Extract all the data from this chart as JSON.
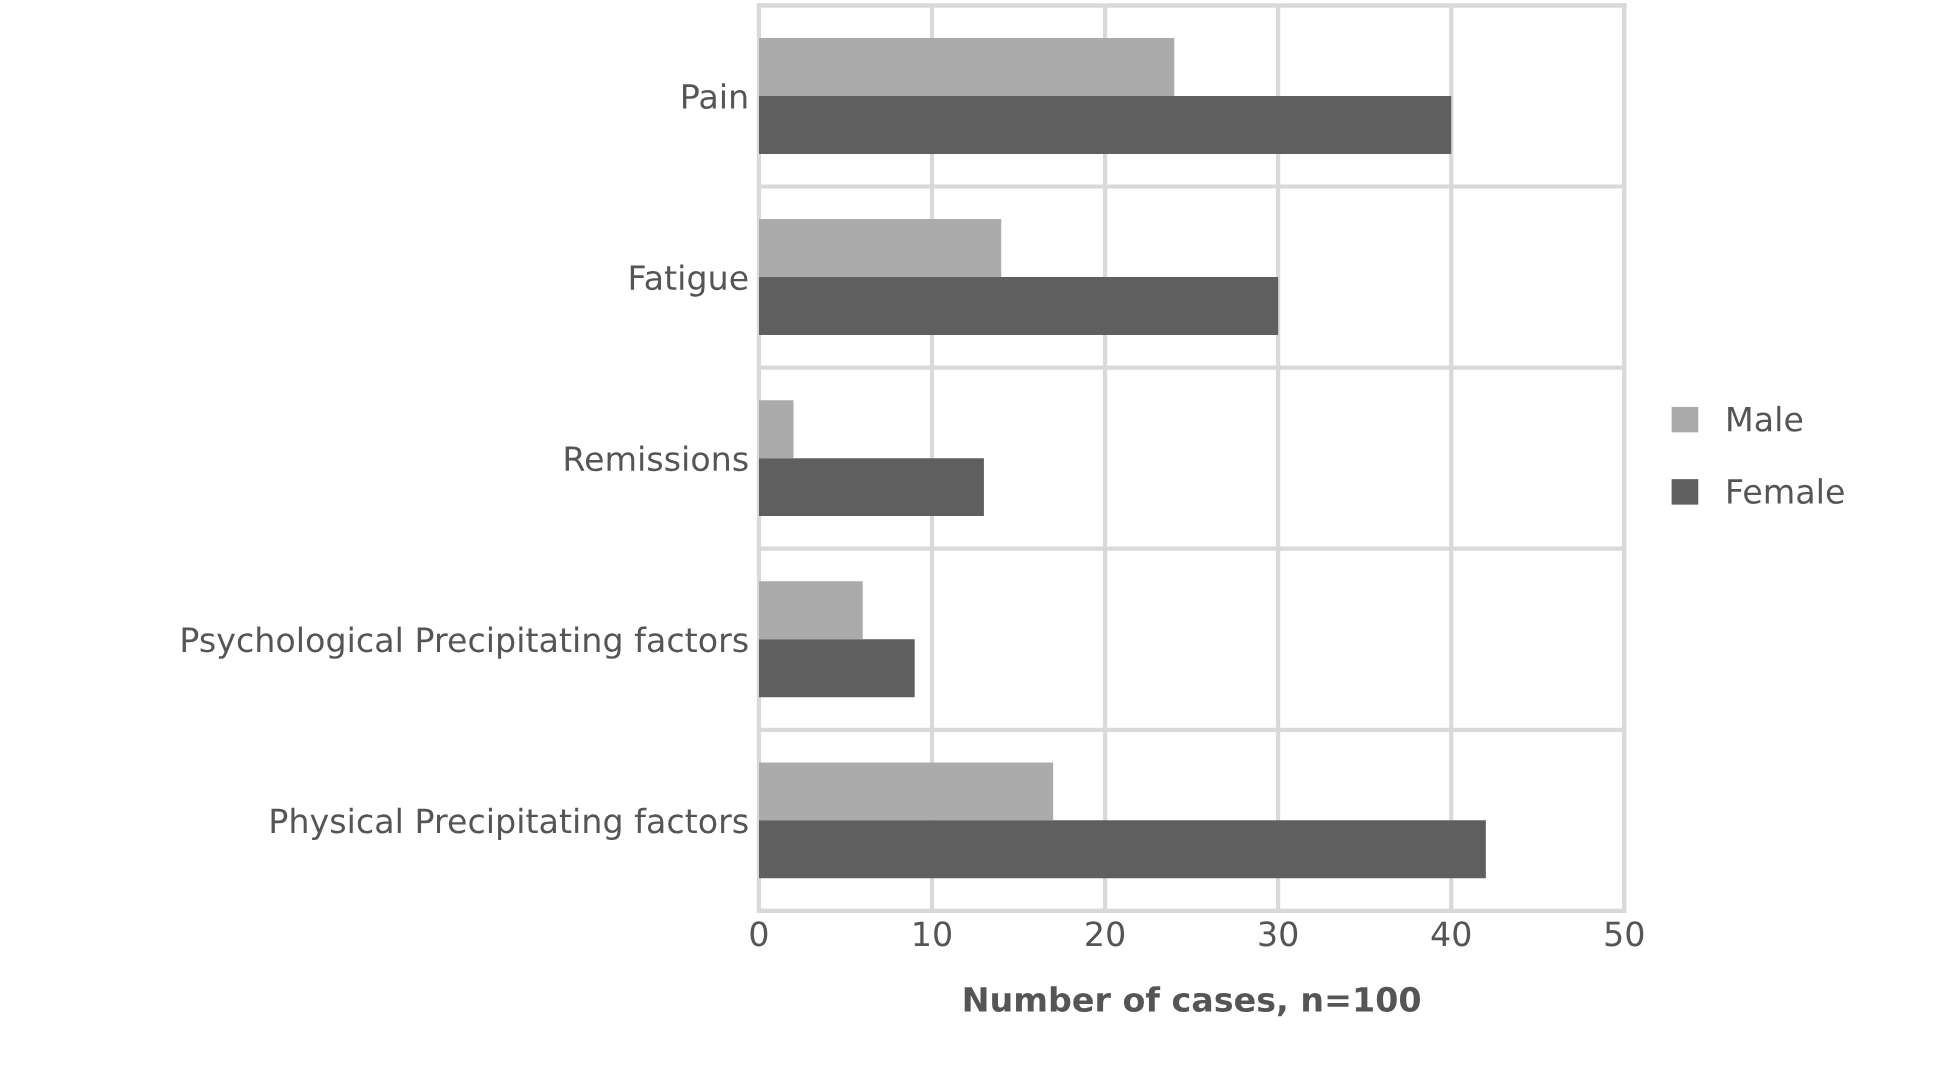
{
  "chart_data": {
    "type": "bar",
    "orientation": "horizontal",
    "xlabel": "Number of cases, n=100",
    "categories": [
      "Pain",
      "Fatigue",
      "Remissions",
      "Psychological Precipitating factors",
      "Physical Precipitating factors"
    ],
    "series": [
      {
        "name": "Male",
        "color": "#ababab",
        "values": [
          24,
          14,
          2,
          6,
          17
        ]
      },
      {
        "name": "Female",
        "color": "#5f5f5f",
        "values": [
          40,
          30,
          13,
          9,
          42
        ]
      }
    ],
    "xlim": [
      0,
      50
    ],
    "xticks": [
      0,
      10,
      20,
      30,
      40,
      50
    ],
    "grid": true,
    "legend": "right"
  }
}
